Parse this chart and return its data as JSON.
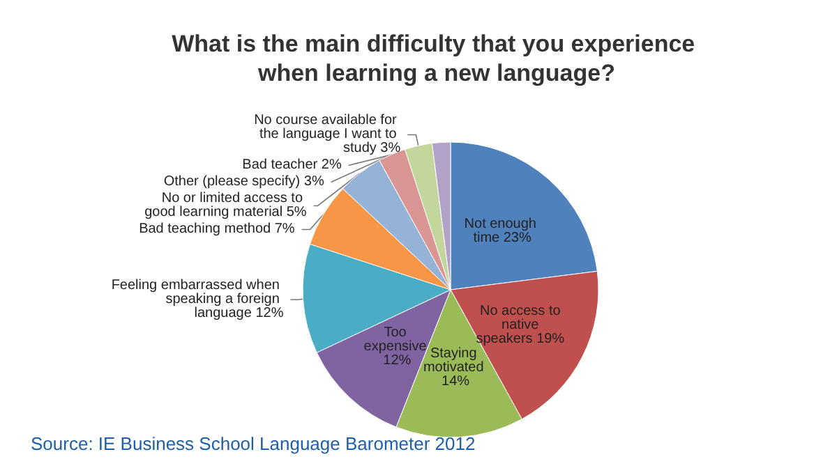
{
  "chart_data": {
    "type": "pie",
    "title": "What is the main difficulty that you experience when learning a new language?",
    "categories": [
      "Not enough time",
      "No access to native speakers",
      "Staying motivated",
      "Too expensive",
      "Feeling embarrassed when speaking a foreign language",
      "Bad teaching method",
      "No or limited access to good learning material",
      "Other (please specify)",
      "No course available for the language I want to study",
      "Bad teacher"
    ],
    "values": [
      23,
      19,
      14,
      12,
      12,
      7,
      5,
      3,
      3,
      2
    ],
    "value_labels": [
      "23%",
      "19%",
      "14%",
      "12%",
      "12%",
      "7%",
      "5%",
      "3%",
      "3%",
      "2%"
    ],
    "colors": [
      "#4f81bd",
      "#c0504d",
      "#9bbb59",
      "#8064a2",
      "#4bacc6",
      "#f79646",
      "#95b3d7",
      "#d99694",
      "#c3d69b",
      "#b3a2c7"
    ],
    "annotations": [
      "Source: IE Business School Language Barometer 2012"
    ]
  }
}
